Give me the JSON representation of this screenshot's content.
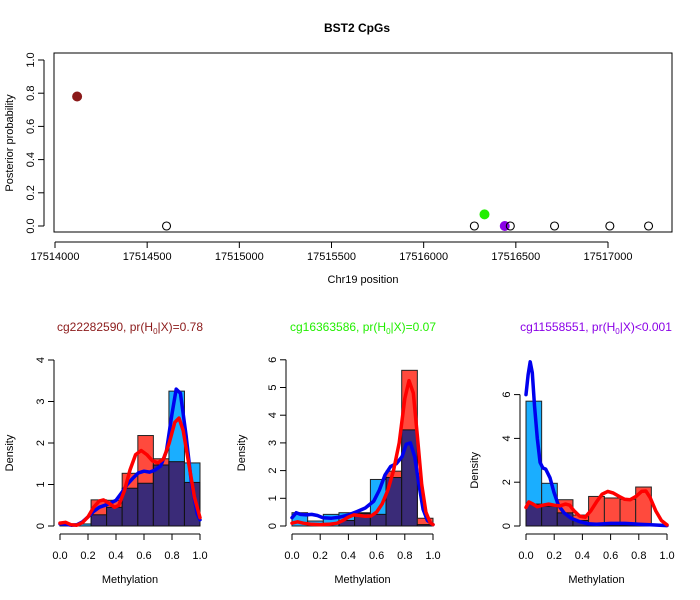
{
  "figure": {
    "title": "BST2 CpGs"
  },
  "chart_data": [
    {
      "type": "scatter",
      "id": "position-plot",
      "title": "BST2 CpGs",
      "xlabel": "Chr19 position",
      "ylabel": "Posterior probability",
      "xlim": [
        17513900,
        17517350
      ],
      "ylim": [
        0,
        1
      ],
      "xticks": [
        17514000,
        17514500,
        17515000,
        17515500,
        17516000,
        17516500,
        17517000
      ],
      "yticks": [
        0.0,
        0.2,
        0.4,
        0.6,
        0.8,
        1.0
      ],
      "ytick_labels": [
        "0.0",
        "0.2",
        "0.4",
        "0.6",
        "0.8",
        "1.0"
      ],
      "grid": false,
      "points": [
        {
          "x": 17514120,
          "y": 0.78,
          "filled": true,
          "color": "#8b1a1a",
          "label": "cg22282590"
        },
        {
          "x": 17514605,
          "y": 0.0,
          "filled": false,
          "color": "#000000"
        },
        {
          "x": 17516275,
          "y": 0.0,
          "filled": false,
          "color": "#000000"
        },
        {
          "x": 17516330,
          "y": 0.07,
          "filled": true,
          "color": "#22ee00",
          "label": "cg16363586"
        },
        {
          "x": 17516440,
          "y": 0.0,
          "filled": true,
          "color": "#8a00e6",
          "label": "cg11558551"
        },
        {
          "x": 17516470,
          "y": 0.0,
          "filled": false,
          "color": "#000000"
        },
        {
          "x": 17516710,
          "y": 0.0,
          "filled": false,
          "color": "#000000"
        },
        {
          "x": 17517010,
          "y": 0.0,
          "filled": false,
          "color": "#000000"
        },
        {
          "x": 17517220,
          "y": 0.0,
          "filled": false,
          "color": "#000000"
        }
      ]
    },
    {
      "type": "bar",
      "id": "hist-cg22282590",
      "title": "cg22282590, pr(H0|X)=0.78",
      "title_parts": {
        "pre": "cg22282590, pr(H",
        "sub": "0",
        "post": "|X)=0.78"
      },
      "title_color": "#8b1a1a",
      "xlabel": "Methylation",
      "ylabel": "Density",
      "xlim": [
        0,
        1
      ],
      "ylim": [
        0,
        4
      ],
      "xticks": [
        0.0,
        0.2,
        0.4,
        0.6,
        0.8,
        1.0
      ],
      "xtick_labels": [
        "0.0",
        "0.2",
        "0.4",
        "0.6",
        "0.8",
        "1.0"
      ],
      "yticks": [
        0,
        1,
        2,
        3,
        4
      ],
      "ytick_labels": [
        "0",
        "1",
        "2",
        "3",
        "4"
      ],
      "bins": [
        0.0,
        0.111,
        0.222,
        0.333,
        0.444,
        0.556,
        0.667,
        0.778,
        0.889,
        1.0
      ],
      "series": [
        {
          "name": "group-red",
          "color": "#ff4a3d",
          "values": [
            0.05,
            0.0,
            0.63,
            0.62,
            1.27,
            2.18,
            1.62,
            1.55,
            1.05
          ]
        },
        {
          "name": "group-blue",
          "color": "#1aaeff",
          "values": [
            0.0,
            0.05,
            0.27,
            0.45,
            0.91,
            1.03,
            1.47,
            3.25,
            1.52
          ]
        }
      ],
      "overlap_color": "#3a2b78",
      "density_curves": [
        {
          "name": "red-density",
          "color": "#ff0000",
          "points": [
            [
              0.0,
              0.07
            ],
            [
              0.04,
              0.09
            ],
            [
              0.08,
              0.03
            ],
            [
              0.12,
              0.02
            ],
            [
              0.16,
              0.08
            ],
            [
              0.2,
              0.22
            ],
            [
              0.24,
              0.45
            ],
            [
              0.28,
              0.6
            ],
            [
              0.31,
              0.63
            ],
            [
              0.35,
              0.55
            ],
            [
              0.39,
              0.45
            ],
            [
              0.42,
              0.5
            ],
            [
              0.46,
              0.85
            ],
            [
              0.5,
              1.35
            ],
            [
              0.54,
              1.72
            ],
            [
              0.58,
              1.82
            ],
            [
              0.62,
              1.72
            ],
            [
              0.66,
              1.57
            ],
            [
              0.7,
              1.52
            ],
            [
              0.74,
              1.62
            ],
            [
              0.78,
              2.0
            ],
            [
              0.82,
              2.5
            ],
            [
              0.85,
              2.6
            ],
            [
              0.88,
              2.3
            ],
            [
              0.92,
              1.5
            ],
            [
              0.96,
              0.7
            ],
            [
              1.0,
              0.2
            ]
          ]
        },
        {
          "name": "blue-density",
          "color": "#0000ee",
          "points": [
            [
              0.0,
              0.05
            ],
            [
              0.04,
              0.04
            ],
            [
              0.08,
              0.02
            ],
            [
              0.12,
              0.03
            ],
            [
              0.16,
              0.1
            ],
            [
              0.2,
              0.22
            ],
            [
              0.24,
              0.35
            ],
            [
              0.28,
              0.45
            ],
            [
              0.32,
              0.5
            ],
            [
              0.36,
              0.55
            ],
            [
              0.4,
              0.62
            ],
            [
              0.44,
              0.8
            ],
            [
              0.48,
              1.0
            ],
            [
              0.52,
              1.15
            ],
            [
              0.56,
              1.28
            ],
            [
              0.6,
              1.32
            ],
            [
              0.64,
              1.3
            ],
            [
              0.68,
              1.35
            ],
            [
              0.72,
              1.45
            ],
            [
              0.76,
              1.8
            ],
            [
              0.8,
              2.7
            ],
            [
              0.83,
              3.3
            ],
            [
              0.86,
              3.2
            ],
            [
              0.9,
              2.2
            ],
            [
              0.94,
              1.0
            ],
            [
              0.98,
              0.3
            ],
            [
              1.0,
              0.15
            ]
          ]
        }
      ]
    },
    {
      "type": "bar",
      "id": "hist-cg16363586",
      "title": "cg16363586, pr(H0|X)=0.07",
      "title_parts": {
        "pre": "cg16363586, pr(H",
        "sub": "0",
        "post": "|X)=0.07"
      },
      "title_color": "#22ee00",
      "xlabel": "Methylation",
      "ylabel": "Density",
      "xlim": [
        0,
        1
      ],
      "ylim": [
        0,
        6
      ],
      "xticks": [
        0.0,
        0.2,
        0.4,
        0.6,
        0.8,
        1.0
      ],
      "xtick_labels": [
        "0.0",
        "0.2",
        "0.4",
        "0.6",
        "0.8",
        "1.0"
      ],
      "yticks": [
        0,
        1,
        2,
        3,
        4,
        5,
        6
      ],
      "ytick_labels": [
        "0",
        "1",
        "2",
        "3",
        "4",
        "5",
        "6"
      ],
      "bins": [
        0.0,
        0.111,
        0.222,
        0.333,
        0.444,
        0.556,
        0.667,
        0.778,
        0.889,
        1.0
      ],
      "series": [
        {
          "name": "group-red",
          "color": "#ff4a3d",
          "values": [
            0.0,
            0.0,
            0.0,
            0.2,
            0.45,
            0.42,
            1.98,
            5.62,
            0.28
          ]
        },
        {
          "name": "group-blue",
          "color": "#1aaeff",
          "values": [
            0.48,
            0.18,
            0.42,
            0.48,
            0.48,
            1.68,
            1.75,
            3.47,
            0.05
          ]
        }
      ],
      "overlap_color": "#3a2b78",
      "density_curves": [
        {
          "name": "red-density",
          "color": "#ff0000",
          "points": [
            [
              0.0,
              0.1
            ],
            [
              0.04,
              0.15
            ],
            [
              0.08,
              0.1
            ],
            [
              0.14,
              0.06
            ],
            [
              0.2,
              0.05
            ],
            [
              0.26,
              0.06
            ],
            [
              0.32,
              0.1
            ],
            [
              0.36,
              0.2
            ],
            [
              0.4,
              0.32
            ],
            [
              0.44,
              0.4
            ],
            [
              0.48,
              0.38
            ],
            [
              0.52,
              0.35
            ],
            [
              0.56,
              0.36
            ],
            [
              0.6,
              0.5
            ],
            [
              0.64,
              0.8
            ],
            [
              0.68,
              1.3
            ],
            [
              0.72,
              2.0
            ],
            [
              0.76,
              3.0
            ],
            [
              0.8,
              4.6
            ],
            [
              0.83,
              5.25
            ],
            [
              0.86,
              4.8
            ],
            [
              0.89,
              3.2
            ],
            [
              0.92,
              1.5
            ],
            [
              0.95,
              0.5
            ],
            [
              0.98,
              0.12
            ],
            [
              1.0,
              0.05
            ]
          ]
        },
        {
          "name": "blue-density",
          "color": "#0000ee",
          "points": [
            [
              0.0,
              0.3
            ],
            [
              0.03,
              0.48
            ],
            [
              0.06,
              0.42
            ],
            [
              0.1,
              0.4
            ],
            [
              0.14,
              0.42
            ],
            [
              0.18,
              0.38
            ],
            [
              0.22,
              0.3
            ],
            [
              0.28,
              0.28
            ],
            [
              0.34,
              0.32
            ],
            [
              0.4,
              0.4
            ],
            [
              0.46,
              0.52
            ],
            [
              0.52,
              0.65
            ],
            [
              0.58,
              0.9
            ],
            [
              0.62,
              1.3
            ],
            [
              0.66,
              1.85
            ],
            [
              0.7,
              2.15
            ],
            [
              0.74,
              2.25
            ],
            [
              0.78,
              2.5
            ],
            [
              0.81,
              2.95
            ],
            [
              0.84,
              3.0
            ],
            [
              0.87,
              2.5
            ],
            [
              0.9,
              1.5
            ],
            [
              0.93,
              0.6
            ],
            [
              0.96,
              0.2
            ],
            [
              1.0,
              0.05
            ]
          ]
        }
      ]
    },
    {
      "type": "bar",
      "id": "hist-cg11558551",
      "title": "cg11558551, pr(H0|X)<0.001",
      "title_parts": {
        "pre": "cg11558551, pr(H",
        "sub": "0",
        "post": "|X)<0.001"
      },
      "title_color": "#8a00e6",
      "xlabel": "Methylation",
      "ylabel": "Density",
      "xlim": [
        0,
        1
      ],
      "ylim": [
        0,
        6
      ],
      "xticks": [
        0.0,
        0.2,
        0.4,
        0.6,
        0.8,
        1.0
      ],
      "xtick_labels": [
        "0.0",
        "0.2",
        "0.4",
        "0.6",
        "0.8",
        "1.0"
      ],
      "yticks": [
        0,
        2,
        4,
        6
      ],
      "ytick_labels": [
        "0",
        "2",
        "4",
        "6"
      ],
      "bins": [
        0.0,
        0.111,
        0.222,
        0.333,
        0.444,
        0.556,
        0.667,
        0.778,
        0.889,
        1.0
      ],
      "series": [
        {
          "name": "group-red",
          "color": "#ff4a3d",
          "values": [
            1.0,
            0.9,
            1.2,
            0.5,
            1.35,
            1.28,
            1.22,
            1.78,
            0.08
          ]
        },
        {
          "name": "group-blue",
          "color": "#1aaeff",
          "values": [
            5.7,
            1.95,
            0.6,
            0.25,
            0.05,
            0.05,
            0.05,
            0.05,
            0.05
          ]
        }
      ],
      "overlap_color": "#3a2b78",
      "density_curves": [
        {
          "name": "red-density",
          "color": "#ff0000",
          "points": [
            [
              0.0,
              0.85
            ],
            [
              0.02,
              1.1
            ],
            [
              0.05,
              1.0
            ],
            [
              0.08,
              0.88
            ],
            [
              0.12,
              0.95
            ],
            [
              0.16,
              1.0
            ],
            [
              0.2,
              0.95
            ],
            [
              0.24,
              0.92
            ],
            [
              0.28,
              1.0
            ],
            [
              0.31,
              0.95
            ],
            [
              0.34,
              0.7
            ],
            [
              0.38,
              0.45
            ],
            [
              0.42,
              0.4
            ],
            [
              0.46,
              0.7
            ],
            [
              0.5,
              1.1
            ],
            [
              0.54,
              1.45
            ],
            [
              0.58,
              1.58
            ],
            [
              0.62,
              1.5
            ],
            [
              0.66,
              1.35
            ],
            [
              0.7,
              1.22
            ],
            [
              0.74,
              1.2
            ],
            [
              0.78,
              1.35
            ],
            [
              0.82,
              1.58
            ],
            [
              0.85,
              1.6
            ],
            [
              0.88,
              1.3
            ],
            [
              0.92,
              0.7
            ],
            [
              0.96,
              0.25
            ],
            [
              1.0,
              0.05
            ]
          ]
        },
        {
          "name": "blue-density",
          "color": "#0000ee",
          "points": [
            [
              0.0,
              6.0
            ],
            [
              0.015,
              6.9
            ],
            [
              0.03,
              7.5
            ],
            [
              0.045,
              7.0
            ],
            [
              0.06,
              5.5
            ],
            [
              0.08,
              4.0
            ],
            [
              0.1,
              2.9
            ],
            [
              0.12,
              2.65
            ],
            [
              0.14,
              2.6
            ],
            [
              0.17,
              2.2
            ],
            [
              0.2,
              1.5
            ],
            [
              0.23,
              0.95
            ],
            [
              0.27,
              0.6
            ],
            [
              0.32,
              0.35
            ],
            [
              0.38,
              0.2
            ],
            [
              0.44,
              0.1
            ],
            [
              0.5,
              0.08
            ],
            [
              0.6,
              0.12
            ],
            [
              0.7,
              0.12
            ],
            [
              0.8,
              0.08
            ],
            [
              0.9,
              0.05
            ],
            [
              1.0,
              0.02
            ]
          ]
        }
      ]
    }
  ]
}
